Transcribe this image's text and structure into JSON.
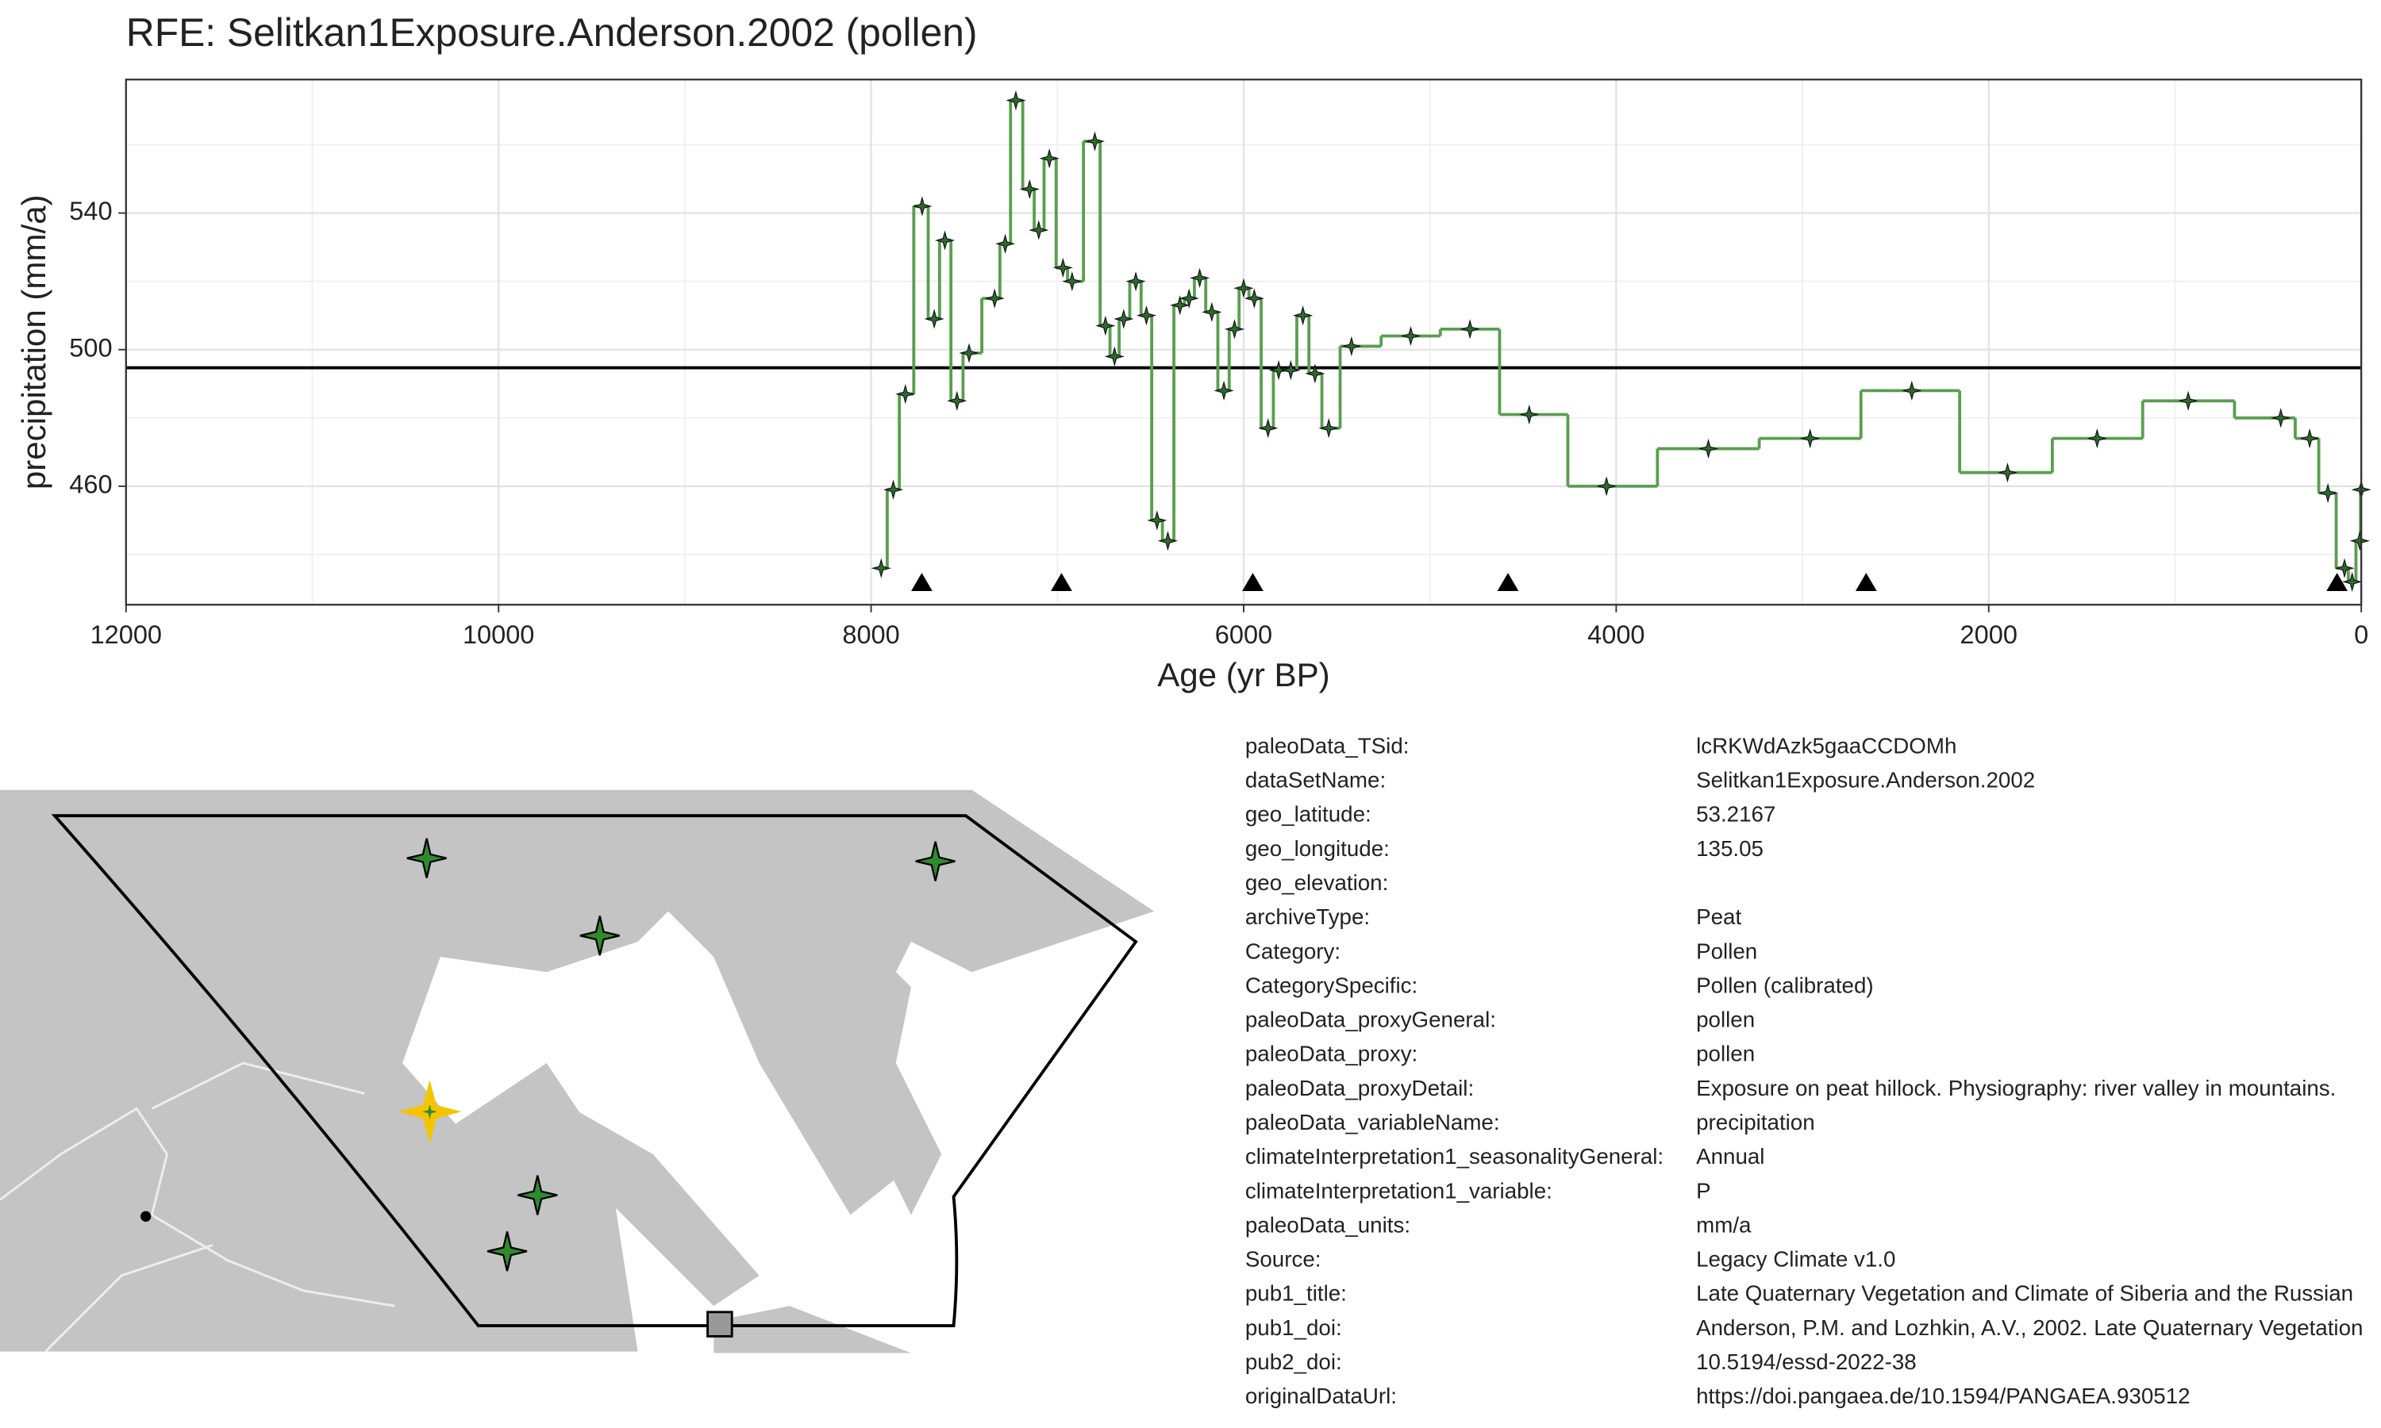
{
  "chart_data": {
    "type": "step",
    "title": "RFE: Selitkan1Exposure.Anderson.2002 (pollen)",
    "x_label": "Age (yr BP)",
    "y_label": "precipitation (mm/a)",
    "x": [
      7946,
      7881,
      7816,
      7726,
      7661,
      7604,
      7539,
      7474,
      7337,
      7280,
      7223,
      7149,
      7100,
      7043,
      6970,
      6921,
      6799,
      6742,
      6693,
      6644,
      6579,
      6522,
      6465,
      6407,
      6342,
      6293,
      6236,
      6171,
      6106,
      6049,
      6000,
      5943,
      5869,
      5812,
      5747,
      5682,
      5617,
      5543,
      5421,
      5103,
      4785,
      4467,
      4052,
      3505,
      2959,
      2413,
      1899,
      1418,
      929,
      432,
      277,
      179,
      90,
      49,
      8,
      0
    ],
    "values": [
      436,
      459,
      487,
      542,
      509,
      532,
      485,
      499,
      515,
      531,
      573,
      547,
      535,
      556,
      524,
      520,
      561,
      507,
      498,
      509,
      520,
      510,
      450,
      444,
      513,
      515,
      521,
      511,
      488,
      506,
      518,
      515,
      477,
      494,
      494,
      510,
      493,
      477,
      501,
      504,
      506,
      481,
      460,
      471,
      474,
      488,
      464,
      474,
      485,
      480,
      474,
      458,
      436,
      432,
      444,
      459
    ],
    "color": "#5a9e50",
    "point_color": "#2d6a2d",
    "reference_line": 494.7,
    "triangle_ages": [
      7728,
      6978,
      5951,
      4581,
      2658,
      130
    ],
    "xlim": [
      12000,
      0
    ],
    "xticks": [
      12000,
      10000,
      8000,
      6000,
      4000,
      2000,
      0
    ],
    "ylim": [
      425.3,
      579.1
    ],
    "yticks": [
      460,
      500,
      540
    ],
    "grid": true
  },
  "metadata": {
    "rows": [
      [
        "paleoData_TSid:",
        "lcRKWdAzk5gaaCCDOMh"
      ],
      [
        "dataSetName:",
        "Selitkan1Exposure.Anderson.2002"
      ],
      [
        "geo_latitude:",
        "53.2167"
      ],
      [
        "geo_longitude:",
        "135.05"
      ],
      [
        "geo_elevation:",
        ""
      ],
      [
        "archiveType:",
        "Peat"
      ],
      [
        "Category:",
        "Pollen"
      ],
      [
        "CategorySpecific:",
        "Pollen (calibrated)"
      ],
      [
        "paleoData_proxyGeneral:",
        "pollen"
      ],
      [
        "paleoData_proxy:",
        "pollen"
      ],
      [
        "paleoData_proxyDetail:",
        "Exposure on peat hillock. Physiography: river valley in mountains."
      ],
      [
        "paleoData_variableName:",
        "precipitation"
      ],
      [
        "climateInterpretation1_seasonalityGeneral:",
        "Annual"
      ],
      [
        "climateInterpretation1_variable:",
        "P"
      ],
      [
        "paleoData_units:",
        "mm/a"
      ],
      [
        "Source:",
        "Legacy Climate v1.0"
      ],
      [
        "pub1_title:",
        "Late Quaternary Vegetation and Climate of Siberia and the Russian"
      ],
      [
        "pub1_doi:",
        "Anderson, P.M. and Lozhkin, A.V., 2002. Late Quaternary Vegetation"
      ],
      [
        "pub2_doi:",
        "10.5194/essd-2022-38"
      ],
      [
        "originalDataUrl:",
        "https://doi.pangaea.de/10.1594/PANGAEA.930512"
      ]
    ]
  }
}
